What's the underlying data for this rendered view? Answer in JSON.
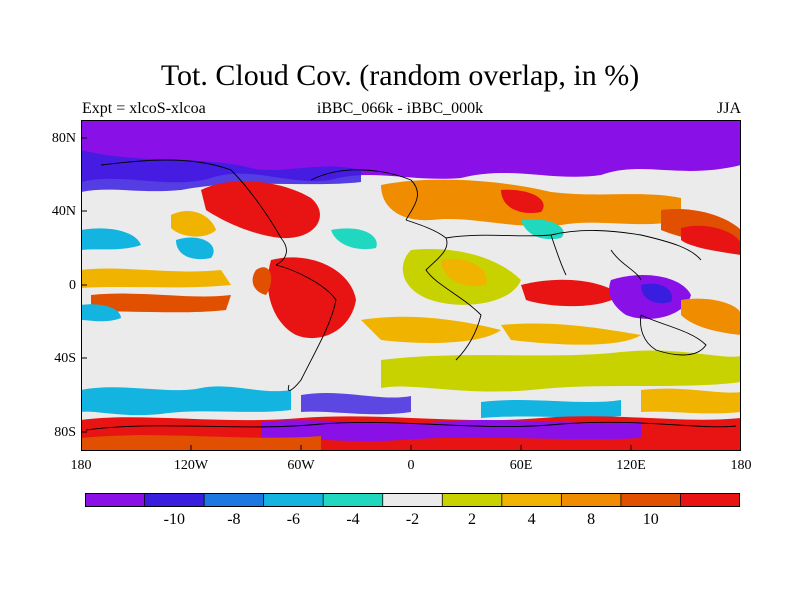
{
  "header": {
    "title": "Tot. Cloud Cov. (random overlap, in %)",
    "left": "Expt = xlcoS-xlcoa",
    "center": "iBBC_066k - iBBC_000k",
    "right": "JJA"
  },
  "axes": {
    "lat_ticks": [
      "80N",
      "40N",
      "0",
      "40S",
      "80S"
    ],
    "lon_ticks": [
      "180",
      "120W",
      "60W",
      "0",
      "60E",
      "120E",
      "180"
    ]
  },
  "colorbar": {
    "colors": [
      "#8a10e8",
      "#3a1ee0",
      "#1a78e0",
      "#14b4e0",
      "#20d8c0",
      "#ebebeb",
      "#c8d200",
      "#f0b400",
      "#f08c00",
      "#e05000",
      "#e81414"
    ],
    "labels": [
      "-10",
      "-8",
      "-6",
      "-4",
      "-2",
      "2",
      "4",
      "8",
      "10"
    ]
  }
}
